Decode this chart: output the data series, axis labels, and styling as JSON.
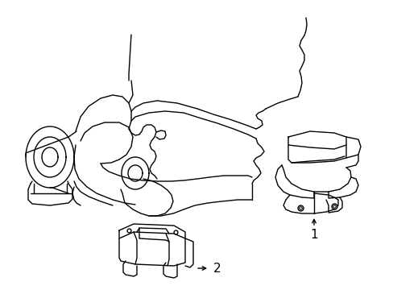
{
  "background_color": "#ffffff",
  "line_color": "#000000",
  "line_width": 1.0,
  "fig_width": 4.89,
  "fig_height": 3.6,
  "dpi": 100,
  "label1_text": "1",
  "label2_text": "2"
}
